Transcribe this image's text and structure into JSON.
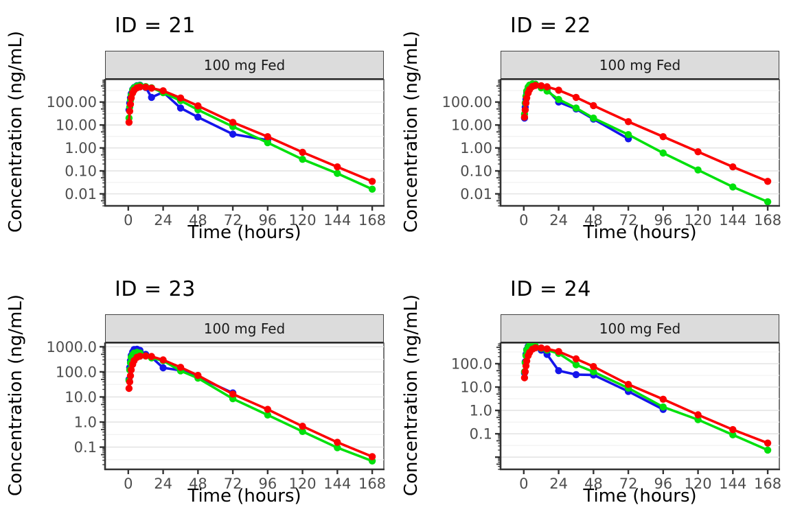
{
  "figure": {
    "xlabel": "Time (hours)",
    "ylabel": "Concentration (ng/mL)",
    "strip_label": "100 mg Fed",
    "colors": {
      "blue": "#1515EB",
      "green": "#00E00C",
      "red": "#FB0000"
    },
    "grid_major_color": "#E4E4E4",
    "grid_minor_color": "#F3F3F3",
    "tick_label_color": "#4D4D4D",
    "axis_color": "#333333",
    "panel_border_color": "#555555",
    "strip_bg": "#DCDCDC"
  },
  "chart_data": [
    {
      "type": "line",
      "title": "ID = 21",
      "strip_label": "100 mg Fed",
      "xlabel": "Time (hours)",
      "ylabel": "Concentration (ng/mL)",
      "xlim": [
        -16,
        176
      ],
      "ylim": [
        0.003,
        950
      ],
      "x_ticks": [
        0,
        24,
        48,
        72,
        96,
        120,
        144,
        168
      ],
      "y_ticks": [
        {
          "value": 100,
          "label": "100.00"
        },
        {
          "value": 10,
          "label": "10.00"
        },
        {
          "value": 1,
          "label": "1.00"
        },
        {
          "value": 0.1,
          "label": "0.10"
        },
        {
          "value": 0.01,
          "label": "0.01"
        }
      ],
      "series": [
        {
          "name": "blue",
          "color": "#1515EB",
          "x": [
            0.5,
            1,
            1.5,
            2,
            3,
            4,
            6,
            8,
            12,
            16,
            24,
            36,
            48,
            72,
            96
          ],
          "y": [
            45,
            90,
            150,
            230,
            350,
            430,
            520,
            545,
            430,
            160,
            270,
            55,
            22,
            4.0,
            2.2
          ]
        },
        {
          "name": "green",
          "color": "#00E00C",
          "x": [
            0.5,
            1,
            1.5,
            2,
            3,
            4,
            6,
            8,
            12,
            16,
            24,
            36,
            48,
            72,
            96,
            120,
            144,
            168
          ],
          "y": [
            20,
            60,
            120,
            200,
            330,
            420,
            500,
            525,
            470,
            420,
            255,
            115,
            46,
            8.5,
            1.7,
            0.32,
            0.078,
            0.016
          ]
        },
        {
          "name": "red",
          "color": "#FB0000",
          "x": [
            0.5,
            1,
            1.5,
            2,
            3,
            4,
            6,
            8,
            12,
            16,
            24,
            36,
            48,
            72,
            96,
            120,
            144,
            168
          ],
          "y": [
            13,
            40,
            80,
            150,
            250,
            330,
            420,
            455,
            445,
            405,
            310,
            150,
            68,
            13,
            3.1,
            0.65,
            0.15,
            0.035
          ]
        }
      ]
    },
    {
      "type": "line",
      "title": "ID = 22",
      "strip_label": "100 mg Fed",
      "xlabel": "Time (hours)",
      "ylabel": "Concentration (ng/mL)",
      "xlim": [
        -16,
        176
      ],
      "ylim": [
        0.003,
        950
      ],
      "x_ticks": [
        0,
        24,
        48,
        72,
        96,
        120,
        144,
        168
      ],
      "y_ticks": [
        {
          "value": 100,
          "label": "100.00"
        },
        {
          "value": 10,
          "label": "10.00"
        },
        {
          "value": 1,
          "label": "1.00"
        },
        {
          "value": 0.1,
          "label": "0.10"
        },
        {
          "value": 0.01,
          "label": "0.01"
        }
      ],
      "series": [
        {
          "name": "blue",
          "color": "#1515EB",
          "x": [
            0.5,
            1,
            1.5,
            2,
            3,
            4,
            6,
            8,
            12,
            16,
            24,
            36,
            48,
            72
          ],
          "y": [
            20,
            60,
            130,
            250,
            400,
            520,
            600,
            585,
            450,
            350,
            100,
            50,
            18,
            2.5
          ]
        },
        {
          "name": "green",
          "color": "#00E00C",
          "x": [
            0.5,
            1,
            1.5,
            2,
            3,
            4,
            6,
            8,
            12,
            16,
            24,
            36,
            48,
            72,
            96,
            120,
            144,
            168
          ],
          "y": [
            30,
            90,
            180,
            300,
            450,
            550,
            620,
            600,
            420,
            300,
            130,
            55,
            20,
            3.8,
            0.6,
            0.11,
            0.02,
            0.0045
          ]
        },
        {
          "name": "red",
          "color": "#FB0000",
          "x": [
            0.5,
            1,
            1.5,
            2,
            3,
            4,
            6,
            8,
            12,
            16,
            24,
            36,
            48,
            72,
            96,
            120,
            144,
            168
          ],
          "y": [
            22,
            45,
            90,
            150,
            250,
            350,
            480,
            530,
            515,
            460,
            330,
            160,
            70,
            14,
            3.1,
            0.68,
            0.15,
            0.035
          ]
        }
      ]
    },
    {
      "type": "line",
      "title": "ID = 23",
      "strip_label": "100 mg Fed",
      "xlabel": "Time (hours)",
      "ylabel": "Concentration (ng/mL)",
      "xlim": [
        -16,
        176
      ],
      "ylim": [
        0.013,
        1400
      ],
      "x_ticks": [
        0,
        24,
        48,
        72,
        96,
        120,
        144,
        168
      ],
      "y_ticks": [
        {
          "value": 1000,
          "label": "1000.0"
        },
        {
          "value": 100,
          "label": "100.0"
        },
        {
          "value": 10,
          "label": "10.0"
        },
        {
          "value": 1,
          "label": "1.0"
        },
        {
          "value": 0.1,
          "label": "0.1"
        }
      ],
      "series": [
        {
          "name": "blue",
          "color": "#1515EB",
          "x": [
            0.5,
            1,
            1.5,
            2,
            3,
            4,
            6,
            8,
            12,
            16,
            24,
            36,
            48,
            72
          ],
          "y": [
            50,
            150,
            280,
            450,
            620,
            780,
            800,
            720,
            500,
            380,
            145,
            115,
            62,
            14.5
          ]
        },
        {
          "name": "green",
          "color": "#00E00C",
          "x": [
            0.5,
            1,
            1.5,
            2,
            3,
            4,
            6,
            8,
            12,
            16,
            24,
            36,
            48,
            72,
            96,
            120,
            144,
            168
          ],
          "y": [
            45,
            120,
            230,
            380,
            480,
            560,
            600,
            565,
            430,
            360,
            280,
            110,
            56,
            8.5,
            1.9,
            0.42,
            0.095,
            0.028
          ]
        },
        {
          "name": "red",
          "color": "#FB0000",
          "x": [
            0.5,
            1,
            1.5,
            2,
            3,
            4,
            6,
            8,
            12,
            16,
            24,
            36,
            48,
            72,
            96,
            120,
            144,
            168
          ],
          "y": [
            22,
            40,
            70,
            120,
            200,
            280,
            380,
            420,
            430,
            410,
            300,
            152,
            72,
            13,
            3.2,
            0.68,
            0.155,
            0.042
          ]
        }
      ]
    },
    {
      "type": "line",
      "title": "ID = 24",
      "strip_label": "100 mg Fed",
      "xlabel": "Time (hours)",
      "ylabel": "Concentration (ng/mL)",
      "xlim": [
        -16,
        176
      ],
      "ylim": [
        0.003,
        760
      ],
      "x_ticks": [
        0,
        24,
        48,
        72,
        96,
        120,
        144,
        168
      ],
      "y_ticks": [
        {
          "value": 100,
          "label": "100.0"
        },
        {
          "value": 10,
          "label": "10.0"
        },
        {
          "value": 1,
          "label": "1.0"
        },
        {
          "value": 0.1,
          "label": "0.1"
        }
      ],
      "series": [
        {
          "name": "blue",
          "color": "#1515EB",
          "x": [
            0.5,
            1,
            1.5,
            2,
            3,
            4,
            6,
            8,
            12,
            16,
            24,
            36,
            48,
            72,
            96
          ],
          "y": [
            40,
            120,
            250,
            400,
            550,
            600,
            565,
            480,
            380,
            250,
            50,
            34,
            33,
            6.5,
            1.1
          ]
        },
        {
          "name": "green",
          "color": "#00E00C",
          "x": [
            0.5,
            1,
            1.5,
            2,
            3,
            4,
            6,
            8,
            12,
            16,
            24,
            36,
            48,
            72,
            96,
            120,
            144,
            168
          ],
          "y": [
            45,
            110,
            220,
            380,
            500,
            620,
            600,
            560,
            450,
            380,
            275,
            90,
            45,
            9,
            1.4,
            0.4,
            0.09,
            0.02
          ]
        },
        {
          "name": "red",
          "color": "#FB0000",
          "x": [
            0.5,
            1,
            1.5,
            2,
            3,
            4,
            6,
            8,
            12,
            16,
            24,
            36,
            48,
            72,
            96,
            120,
            144,
            168
          ],
          "y": [
            25,
            45,
            80,
            130,
            220,
            300,
            420,
            480,
            470,
            430,
            330,
            160,
            75,
            13,
            3.0,
            0.65,
            0.15,
            0.04
          ]
        }
      ]
    }
  ]
}
